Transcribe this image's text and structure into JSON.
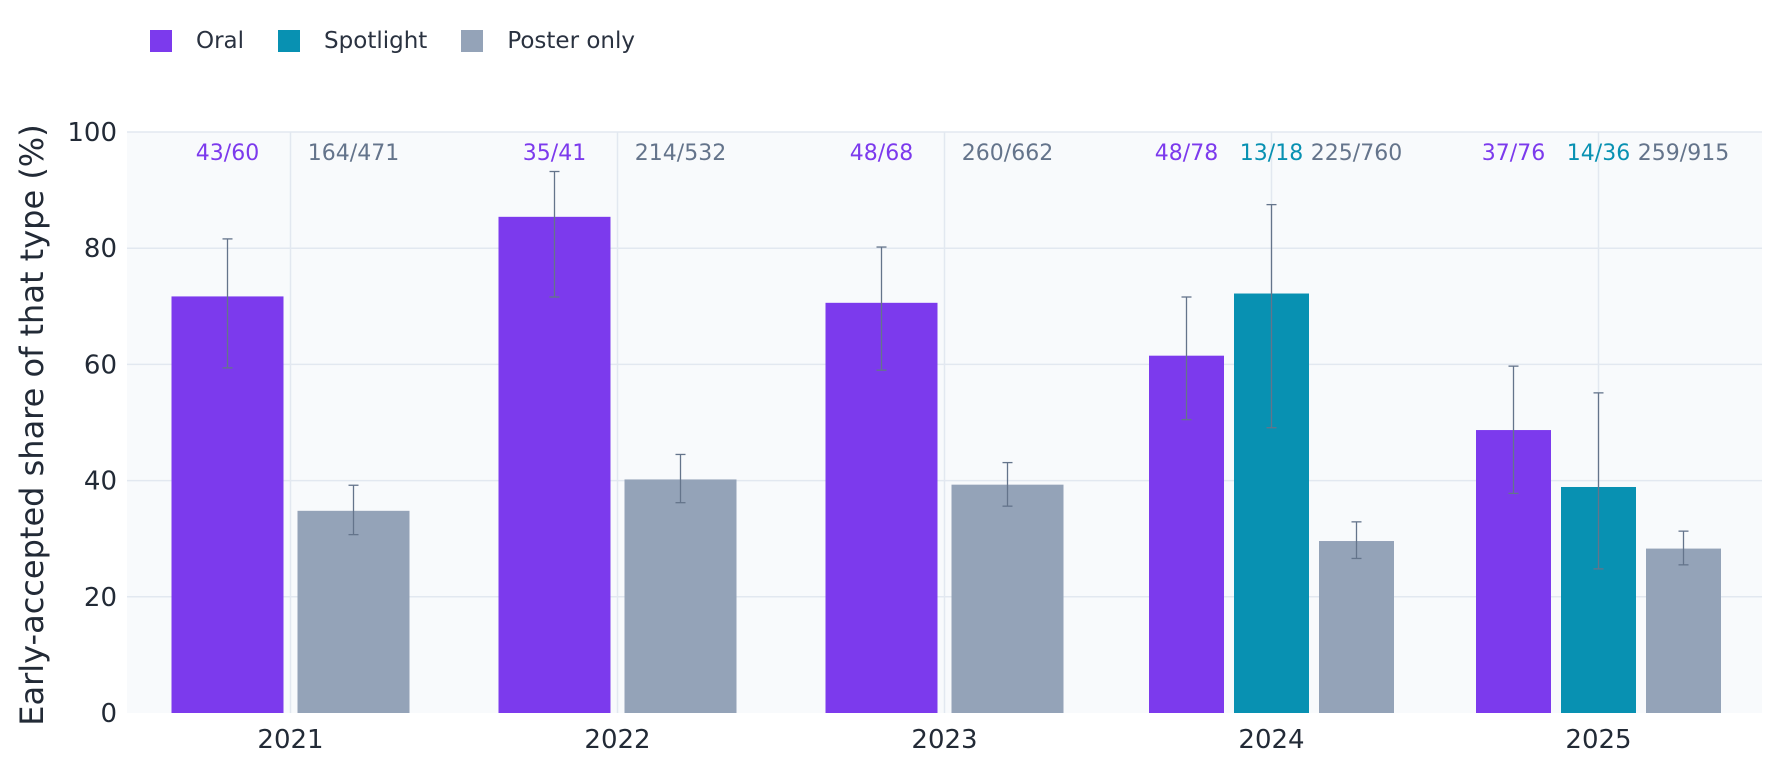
{
  "legend": {
    "items": [
      {
        "label": "Oral",
        "color": "#7c3aed"
      },
      {
        "label": "Spotlight",
        "color": "#0891b2"
      },
      {
        "label": "Poster only",
        "color": "#94a3b8"
      }
    ]
  },
  "chart_data": {
    "type": "bar",
    "title": "",
    "xlabel": "",
    "ylabel": "Early-accepted share of that type (%)",
    "ylim": [
      0,
      100
    ],
    "yticks": [
      0,
      20,
      40,
      60,
      80,
      100
    ],
    "grid": true,
    "legend_position": "top-left",
    "categories": [
      "2021",
      "2022",
      "2023",
      "2024",
      "2025"
    ],
    "groups": [
      {
        "category": "2021",
        "bars": [
          {
            "series": "Oral",
            "value": 71.7,
            "err_low": 59.4,
            "err_high": 81.6,
            "label": "43/60"
          },
          {
            "series": "Poster only",
            "value": 34.8,
            "err_low": 30.7,
            "err_high": 39.2,
            "label": "164/471"
          }
        ]
      },
      {
        "category": "2022",
        "bars": [
          {
            "series": "Oral",
            "value": 85.4,
            "err_low": 71.6,
            "err_high": 93.2,
            "label": "35/41"
          },
          {
            "series": "Poster only",
            "value": 40.2,
            "err_low": 36.2,
            "err_high": 44.5,
            "label": "214/532"
          }
        ]
      },
      {
        "category": "2023",
        "bars": [
          {
            "series": "Oral",
            "value": 70.6,
            "err_low": 59.0,
            "err_high": 80.2,
            "label": "48/68"
          },
          {
            "series": "Poster only",
            "value": 39.3,
            "err_low": 35.6,
            "err_high": 43.1,
            "label": "260/662"
          }
        ]
      },
      {
        "category": "2024",
        "bars": [
          {
            "series": "Oral",
            "value": 61.5,
            "err_low": 50.5,
            "err_high": 71.6,
            "label": "48/78"
          },
          {
            "series": "Spotlight",
            "value": 72.2,
            "err_low": 49.1,
            "err_high": 87.5,
            "label": "13/18"
          },
          {
            "series": "Poster only",
            "value": 29.6,
            "err_low": 26.6,
            "err_high": 32.9,
            "label": "225/760"
          }
        ]
      },
      {
        "category": "2025",
        "bars": [
          {
            "series": "Oral",
            "value": 48.7,
            "err_low": 37.8,
            "err_high": 59.7,
            "label": "37/76"
          },
          {
            "series": "Spotlight",
            "value": 38.9,
            "err_low": 24.8,
            "err_high": 55.1,
            "label": "14/36"
          },
          {
            "series": "Poster only",
            "value": 28.3,
            "err_low": 25.5,
            "err_high": 31.3,
            "label": "259/915"
          }
        ]
      }
    ]
  }
}
